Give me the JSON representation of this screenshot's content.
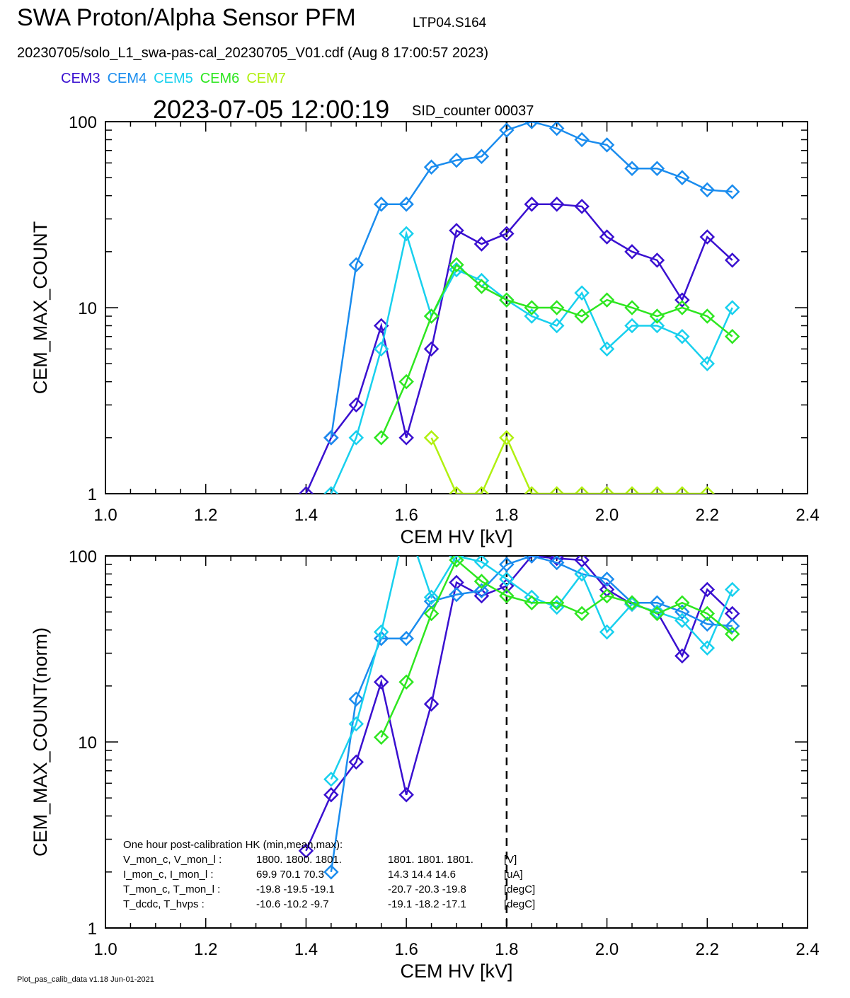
{
  "header": {
    "title": "SWA Proton/Alpha Sensor PFM",
    "instrument_id": "LTP04.S164",
    "file_line": "20230705/solo_L1_swa-pas-cal_20230705_V01.cdf  (Aug  8 17:00:57 2023)",
    "timestamp": "2023-07-05 12:00:19",
    "sid": "SID_counter 00037"
  },
  "legend": [
    {
      "name": "CEM3",
      "color": "#3a10d0"
    },
    {
      "name": "CEM4",
      "color": "#1a8cee"
    },
    {
      "name": "CEM5",
      "color": "#18d0ee"
    },
    {
      "name": "CEM6",
      "color": "#2ee620"
    },
    {
      "name": "CEM7",
      "color": "#b0f010"
    }
  ],
  "hk_box": {
    "heading": "One hour post-calibration HK (min,mean,max):",
    "rows": [
      {
        "label": "V_mon_c, V_mon_l :",
        "a": "1800.  1800.  1801.",
        "b": "1801.  1801.  1801.",
        "unit": "[V]"
      },
      {
        "label": "I_mon_c,  I_mon_l :",
        "a": "69.9   70.1   70.3",
        "b": "14.3   14.4   14.6",
        "unit": "[uA]"
      },
      {
        "label": "T_mon_c, T_mon_l :",
        "a": "-19.8  -19.5  -19.1",
        "b": "-20.7  -20.3  -19.8",
        "unit": "[degC]"
      },
      {
        "label": "T_dcdc,    T_hvps :",
        "a": "-10.6  -10.2   -9.7",
        "b": "-19.1  -18.2  -17.1",
        "unit": "[degC]"
      }
    ]
  },
  "footer": "Plot_pas_calib_data v1.18 Jun-01-2021",
  "chart_data": [
    {
      "type": "line",
      "xlabel": "CEM HV [kV]",
      "ylabel": "CEM_MAX_COUNT",
      "xlim": [
        1.0,
        2.4
      ],
      "ylim": [
        1,
        100
      ],
      "yscale": "log",
      "x_ticks": [
        "1.0",
        "1.2",
        "1.4",
        "1.6",
        "1.8",
        "2.0",
        "2.2",
        "2.4"
      ],
      "y_ticks": [
        "1",
        "10",
        "100"
      ],
      "vline_x": 1.8,
      "series": [
        {
          "name": "CEM3",
          "x": [
            1.4,
            1.45,
            1.5,
            1.55,
            1.6,
            1.65,
            1.7,
            1.75,
            1.8,
            1.85,
            1.9,
            1.95,
            2.0,
            2.05,
            2.1,
            2.15,
            2.2,
            2.25
          ],
          "values": [
            1,
            2,
            3,
            8,
            2,
            6,
            26,
            22,
            25,
            36,
            36,
            35,
            24,
            20,
            18,
            11,
            24,
            18
          ]
        },
        {
          "name": "CEM4",
          "x": [
            1.45,
            1.5,
            1.55,
            1.6,
            1.65,
            1.7,
            1.75,
            1.8,
            1.85,
            1.9,
            1.95,
            2.0,
            2.05,
            2.1,
            2.15,
            2.2,
            2.25
          ],
          "values": [
            2,
            17,
            36,
            36,
            57,
            62,
            65,
            90,
            100,
            92,
            80,
            75,
            56,
            56,
            50,
            43,
            42
          ]
        },
        {
          "name": "CEM5",
          "x": [
            1.45,
            1.5,
            1.55,
            1.6,
            1.65,
            1.7,
            1.75,
            1.8,
            1.85,
            1.9,
            1.95,
            2.0,
            2.05,
            2.1,
            2.15,
            2.2,
            2.25
          ],
          "values": [
            1,
            2,
            6,
            25,
            9,
            16,
            14,
            11,
            9,
            8,
            12,
            6,
            8,
            8,
            7,
            5,
            10
          ]
        },
        {
          "name": "CEM6",
          "x": [
            1.55,
            1.6,
            1.65,
            1.7,
            1.75,
            1.8,
            1.85,
            1.9,
            1.95,
            2.0,
            2.05,
            2.1,
            2.15,
            2.2,
            2.25
          ],
          "values": [
            2,
            4,
            9,
            17,
            13,
            11,
            10,
            10,
            9,
            11,
            10,
            9,
            10,
            9,
            7
          ]
        },
        {
          "name": "CEM7",
          "x": [
            1.65,
            1.7,
            1.75,
            1.8,
            1.85,
            1.9,
            1.95,
            2.0,
            2.05,
            2.1,
            2.15,
            2.2
          ],
          "values": [
            2,
            1,
            1,
            2,
            1,
            1,
            1,
            1,
            1,
            1,
            1,
            1
          ]
        }
      ]
    },
    {
      "type": "line",
      "xlabel": "CEM HV [kV]",
      "ylabel": "CEM_MAX_COUNT(norm)",
      "xlim": [
        1.0,
        2.4
      ],
      "ylim": [
        1,
        100
      ],
      "yscale": "log",
      "x_ticks": [
        "1.0",
        "1.2",
        "1.4",
        "1.6",
        "1.8",
        "2.0",
        "2.2",
        "2.4"
      ],
      "y_ticks": [
        "1",
        "10",
        "100"
      ],
      "vline_x": 1.8,
      "series": [
        {
          "name": "CEM3",
          "x": [
            1.4,
            1.45,
            1.5,
            1.55,
            1.6,
            1.65,
            1.7,
            1.75,
            1.8,
            1.85,
            1.9,
            1.95,
            2.0,
            2.05,
            2.1,
            2.15,
            2.2,
            2.25
          ],
          "values": [
            2.6,
            5.2,
            7.8,
            21,
            5.2,
            16,
            72,
            61,
            69,
            100,
            97,
            95,
            66,
            55,
            50,
            29,
            66,
            49
          ]
        },
        {
          "name": "CEM4",
          "x": [
            1.45,
            1.5,
            1.55,
            1.6,
            1.65,
            1.7,
            1.75,
            1.8,
            1.85,
            1.9,
            1.95,
            2.0,
            2.05,
            2.1,
            2.15,
            2.2,
            2.25
          ],
          "values": [
            2,
            17,
            36,
            36,
            57,
            62,
            65,
            90,
            100,
            92,
            80,
            75,
            56,
            56,
            50,
            43,
            42
          ]
        },
        {
          "name": "CEM5",
          "x": [
            1.45,
            1.5,
            1.55,
            1.6,
            1.65,
            1.7,
            1.75,
            1.8,
            1.85,
            1.9,
            1.95,
            2.0,
            2.05,
            2.1,
            2.15,
            2.2,
            2.25
          ],
          "values": [
            6.3,
            12.5,
            39,
            150,
            60,
            100,
            93,
            75,
            60,
            53,
            80,
            39,
            55,
            50,
            45,
            32,
            66
          ]
        },
        {
          "name": "CEM6",
          "x": [
            1.55,
            1.6,
            1.65,
            1.7,
            1.75,
            1.8,
            1.85,
            1.9,
            1.95,
            2.0,
            2.05,
            2.1,
            2.15,
            2.2,
            2.25
          ],
          "values": [
            10.6,
            21,
            49,
            95,
            73,
            61,
            56,
            56,
            49,
            61,
            56,
            49,
            56,
            49,
            38
          ]
        }
      ]
    }
  ]
}
